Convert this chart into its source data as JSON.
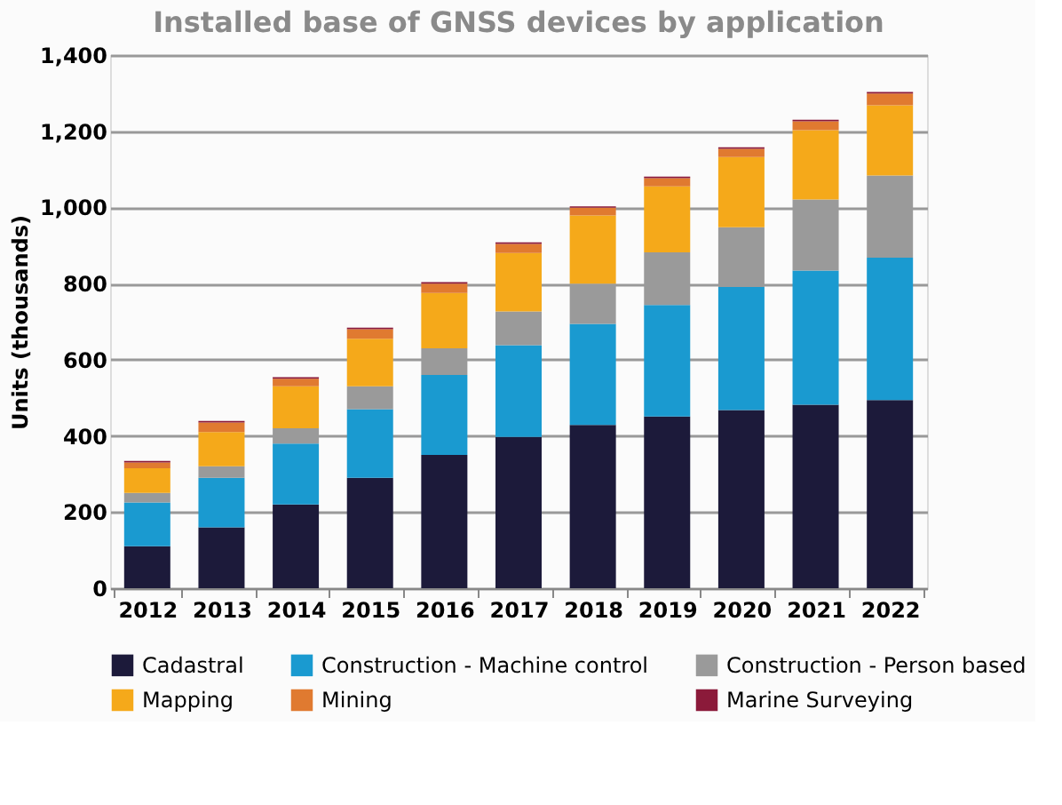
{
  "chart_data": {
    "type": "bar",
    "stacked": true,
    "title": "Installed base of GNSS devices by application",
    "ylabel": "Units (thousands)",
    "categories": [
      "2012",
      "2013",
      "2014",
      "2015",
      "2016",
      "2017",
      "2018",
      "2019",
      "2020",
      "2021",
      "2022"
    ],
    "series": [
      {
        "name": "Cadastral",
        "color": "#1c1a3a",
        "values": [
          110,
          160,
          220,
          290,
          350,
          397,
          429,
          451,
          468,
          482,
          494
        ]
      },
      {
        "name": "Construction - Machine control",
        "color": "#1a9ad0",
        "values": [
          115,
          130,
          160,
          180,
          210,
          241,
          265,
          293,
          323,
          352,
          374
        ]
      },
      {
        "name": "Construction - Person based",
        "color": "#9a9a9a",
        "values": [
          25,
          30,
          40,
          60,
          70,
          89,
          106,
          138,
          157,
          187,
          216
        ]
      },
      {
        "name": "Mapping",
        "color": "#f5a91a",
        "values": [
          65,
          90,
          110,
          125,
          145,
          153,
          179,
          173,
          184,
          182,
          184
        ]
      },
      {
        "name": "Mining",
        "color": "#e07a30",
        "values": [
          15,
          25,
          20,
          25,
          25,
          24,
          20,
          22,
          22,
          23,
          31
        ]
      },
      {
        "name": "Marine Surveying",
        "color": "#8b1a3a",
        "values": [
          4,
          4,
          4,
          4,
          4,
          4,
          4,
          4,
          4,
          4,
          4
        ]
      }
    ],
    "ylim": [
      0,
      1400
    ],
    "yticks": [
      0,
      200,
      400,
      600,
      800,
      {
        "value": 1000,
        "label": "1,000"
      },
      {
        "value": 1200,
        "label": "1,200"
      },
      {
        "value": 1400,
        "label": "1,400"
      }
    ],
    "grid": "y",
    "legend": "bottom"
  }
}
